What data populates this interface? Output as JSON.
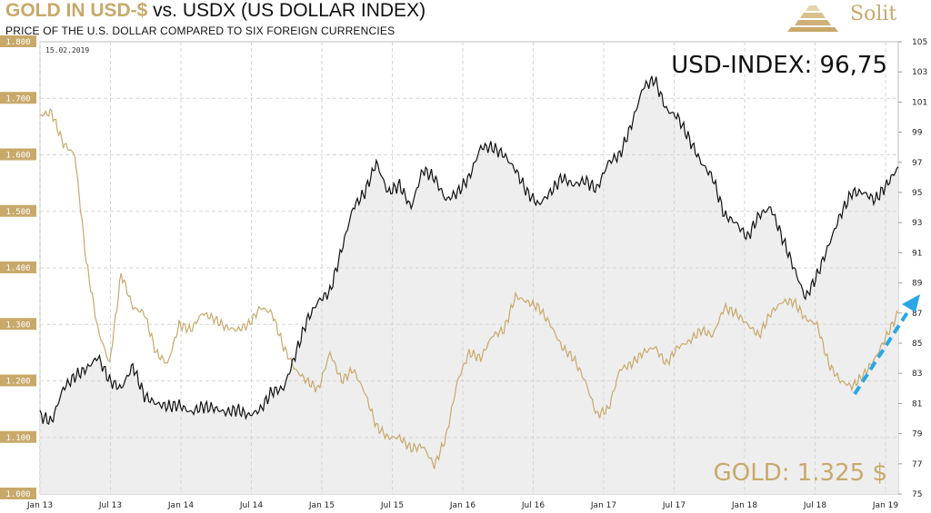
{
  "header": {
    "title_gold": "GOLD IN USD-$",
    "title_rest": " vs. USDX (US DOLLAR INDEX)",
    "subtitle": "PRICE OF THE U.S. DOLLAR COMPARED TO SIX FOREIGN CURRENCIES",
    "brand": "Solit",
    "date": "15.02.2019"
  },
  "labels": {
    "usd_index": "USD-INDEX: 96,75",
    "gold": "GOLD: 1.325 $"
  },
  "colors": {
    "gold": "#c8a96a",
    "usd": "#111111",
    "fill": "#eeeeee",
    "arrow": "#2aa6e6",
    "grid": "#d6d6d6"
  },
  "chart_data": {
    "type": "line",
    "x_ticks": [
      "Jan 13",
      "Jul 13",
      "Jan 14",
      "Jul 14",
      "Jan 15",
      "Jul 15",
      "Jan 16",
      "Jul 16",
      "Jan 17",
      "Jul 17",
      "Jan 18",
      "Jul 18",
      "Jan 19"
    ],
    "xlim": [
      0,
      74
    ],
    "left_axis": {
      "ticks": [
        "1.000",
        "1.100",
        "1.200",
        "1.300",
        "1.400",
        "1.500",
        "1.600",
        "1.700",
        "1.800"
      ],
      "ylim": [
        1000,
        1800
      ]
    },
    "right_axis": {
      "ticks": [
        "75",
        "77",
        "79",
        "81",
        "83",
        "85",
        "87",
        "89",
        "91",
        "93",
        "95",
        "97",
        "99",
        "101",
        "103",
        "105"
      ],
      "ylim": [
        75,
        105
      ]
    },
    "series": [
      {
        "axis": "right",
        "x": [
          0,
          1,
          2,
          3,
          4,
          5,
          6,
          7,
          8,
          9,
          10,
          11,
          12,
          13,
          14,
          15,
          16,
          17,
          18,
          19,
          20,
          21,
          22,
          23,
          24,
          25,
          26,
          27,
          28,
          29,
          30,
          31,
          32,
          33,
          34,
          35,
          36,
          37,
          38,
          39,
          40,
          41,
          42,
          43,
          44,
          45,
          46,
          47,
          48,
          49,
          50,
          51,
          52,
          53,
          54,
          55,
          56,
          57,
          58,
          59,
          60,
          61,
          62,
          63,
          64,
          65,
          66,
          67,
          68,
          69,
          70,
          71,
          72,
          73,
          74
        ],
        "y": [
          80.2,
          79.8,
          82,
          82.8,
          83.3,
          84.1,
          82.5,
          82,
          83.5,
          81.5,
          81,
          80.8,
          80.9,
          80.4,
          80.8,
          80.7,
          80.4,
          80.6,
          80.2,
          80.6,
          81.8,
          82,
          84.2,
          86.5,
          87.8,
          88.4,
          91.2,
          94,
          95,
          97,
          95,
          95.5,
          94,
          96.5,
          96,
          94.5,
          95,
          96,
          98,
          98,
          97.5,
          96.5,
          95,
          94.2,
          95,
          96,
          95.5,
          95.8,
          95.2,
          97,
          97.5,
          99.5,
          102,
          102.5,
          100.5,
          100,
          98.5,
          97,
          96,
          93.5,
          93,
          92,
          93.5,
          94,
          92,
          90,
          88,
          89.5,
          91.5,
          93.5,
          95,
          95,
          94.5,
          95.5,
          96.7
        ]
      },
      {
        "axis": "left",
        "x": [
          0,
          1,
          2,
          3,
          4,
          5,
          6,
          7,
          8,
          9,
          10,
          11,
          12,
          13,
          14,
          15,
          16,
          17,
          18,
          19,
          20,
          21,
          22,
          23,
          24,
          25,
          26,
          27,
          28,
          29,
          30,
          31,
          32,
          33,
          34,
          35,
          36,
          37,
          38,
          39,
          40,
          41,
          42,
          43,
          44,
          45,
          46,
          47,
          48,
          49,
          50,
          51,
          52,
          53,
          54,
          55,
          56,
          57,
          58,
          59,
          60,
          61,
          62,
          63,
          64,
          65,
          66,
          67,
          68,
          69,
          70,
          71,
          72,
          73,
          74
        ],
        "y": [
          1670,
          1675,
          1620,
          1600,
          1410,
          1290,
          1230,
          1390,
          1330,
          1320,
          1250,
          1230,
          1300,
          1290,
          1320,
          1310,
          1295,
          1290,
          1300,
          1330,
          1320,
          1260,
          1220,
          1200,
          1185,
          1250,
          1200,
          1220,
          1180,
          1120,
          1100,
          1100,
          1080,
          1085,
          1050,
          1100,
          1200,
          1250,
          1240,
          1280,
          1290,
          1350,
          1340,
          1330,
          1300,
          1260,
          1240,
          1200,
          1140,
          1150,
          1220,
          1230,
          1250,
          1260,
          1230,
          1260,
          1270,
          1290,
          1280,
          1330,
          1320,
          1300,
          1280,
          1320,
          1340,
          1340,
          1310,
          1300,
          1230,
          1200,
          1190,
          1210,
          1240,
          1280,
          1320
        ]
      }
    ]
  }
}
